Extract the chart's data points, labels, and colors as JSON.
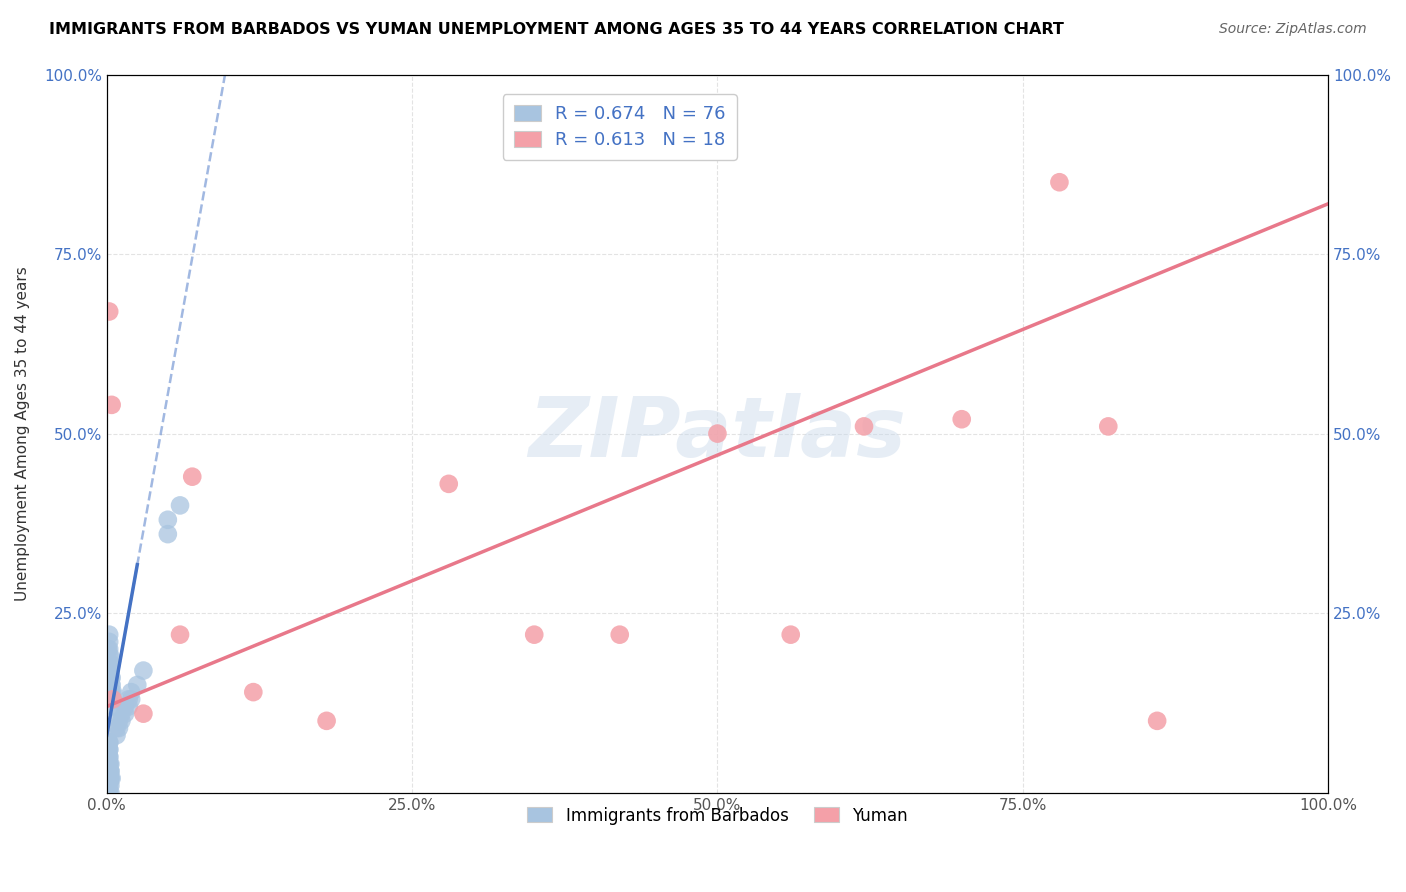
{
  "title": "IMMIGRANTS FROM BARBADOS VS YUMAN UNEMPLOYMENT AMONG AGES 35 TO 44 YEARS CORRELATION CHART",
  "source": "Source: ZipAtlas.com",
  "ylabel": "Unemployment Among Ages 35 to 44 years",
  "watermark": "ZIPatlas",
  "blue_label": "Immigrants from Barbados",
  "pink_label": "Yuman",
  "blue_R": 0.674,
  "blue_N": 76,
  "pink_R": 0.613,
  "pink_N": 18,
  "blue_color": "#a8c4e0",
  "pink_color": "#f4a0a8",
  "trend_blue_color": "#4472c4",
  "trend_pink_color": "#e8788a",
  "blue_scatter_x": [
    0.001,
    0.001,
    0.001,
    0.001,
    0.002,
    0.002,
    0.002,
    0.002,
    0.002,
    0.002,
    0.002,
    0.003,
    0.003,
    0.003,
    0.003,
    0.003,
    0.003,
    0.004,
    0.004,
    0.004,
    0.004,
    0.005,
    0.005,
    0.005,
    0.001,
    0.001,
    0.002,
    0.002,
    0.002,
    0.003,
    0.003,
    0.003,
    0.001,
    0.001,
    0.002,
    0.002,
    0.003,
    0.003,
    0.004,
    0.001,
    0.002,
    0.002,
    0.003,
    0.001,
    0.002,
    0.003,
    0.001,
    0.002,
    0.001,
    0.002,
    0.001,
    0.002,
    0.001,
    0.002,
    0.001,
    0.002,
    0.001,
    0.002,
    0.001,
    0.002,
    0.008,
    0.008,
    0.01,
    0.01,
    0.012,
    0.012,
    0.015,
    0.015,
    0.018,
    0.018,
    0.02,
    0.02,
    0.025,
    0.03,
    0.05,
    0.05,
    0.06
  ],
  "blue_scatter_y": [
    0.17,
    0.17,
    0.18,
    0.2,
    0.16,
    0.17,
    0.18,
    0.19,
    0.2,
    0.21,
    0.22,
    0.14,
    0.15,
    0.16,
    0.17,
    0.18,
    0.19,
    0.13,
    0.14,
    0.15,
    0.16,
    0.12,
    0.13,
    0.14,
    0.0,
    0.01,
    0.0,
    0.01,
    0.02,
    0.0,
    0.01,
    0.02,
    0.02,
    0.03,
    0.02,
    0.03,
    0.02,
    0.03,
    0.02,
    0.03,
    0.03,
    0.04,
    0.03,
    0.04,
    0.04,
    0.04,
    0.04,
    0.04,
    0.05,
    0.05,
    0.05,
    0.05,
    0.06,
    0.06,
    0.06,
    0.06,
    0.07,
    0.07,
    0.07,
    0.07,
    0.08,
    0.09,
    0.09,
    0.1,
    0.1,
    0.11,
    0.11,
    0.12,
    0.12,
    0.13,
    0.13,
    0.14,
    0.15,
    0.17,
    0.36,
    0.38,
    0.4
  ],
  "pink_scatter_x": [
    0.002,
    0.004,
    0.005,
    0.03,
    0.07,
    0.12,
    0.18,
    0.28,
    0.42,
    0.5,
    0.56,
    0.62,
    0.7,
    0.78,
    0.82,
    0.86,
    0.06,
    0.35
  ],
  "pink_scatter_y": [
    0.67,
    0.54,
    0.13,
    0.11,
    0.44,
    0.14,
    0.1,
    0.43,
    0.22,
    0.5,
    0.22,
    0.51,
    0.52,
    0.85,
    0.51,
    0.1,
    0.22,
    0.22
  ],
  "xlim": [
    0.0,
    1.0
  ],
  "ylim": [
    0.0,
    1.0
  ],
  "xticks": [
    0.0,
    0.25,
    0.5,
    0.75,
    1.0
  ],
  "yticks": [
    0.0,
    0.25,
    0.5,
    0.75,
    1.0
  ],
  "xticklabels": [
    "0.0%",
    "25.0%",
    "50.0%",
    "75.0%",
    "100.0%"
  ],
  "yleft_labels": [
    "",
    "25.0%",
    "50.0%",
    "75.0%",
    "100.0%"
  ],
  "yright_labels": [
    "",
    "25.0%",
    "50.0%",
    "75.0%",
    "100.0%"
  ],
  "background_color": "#ffffff",
  "grid_color": "#dddddd"
}
